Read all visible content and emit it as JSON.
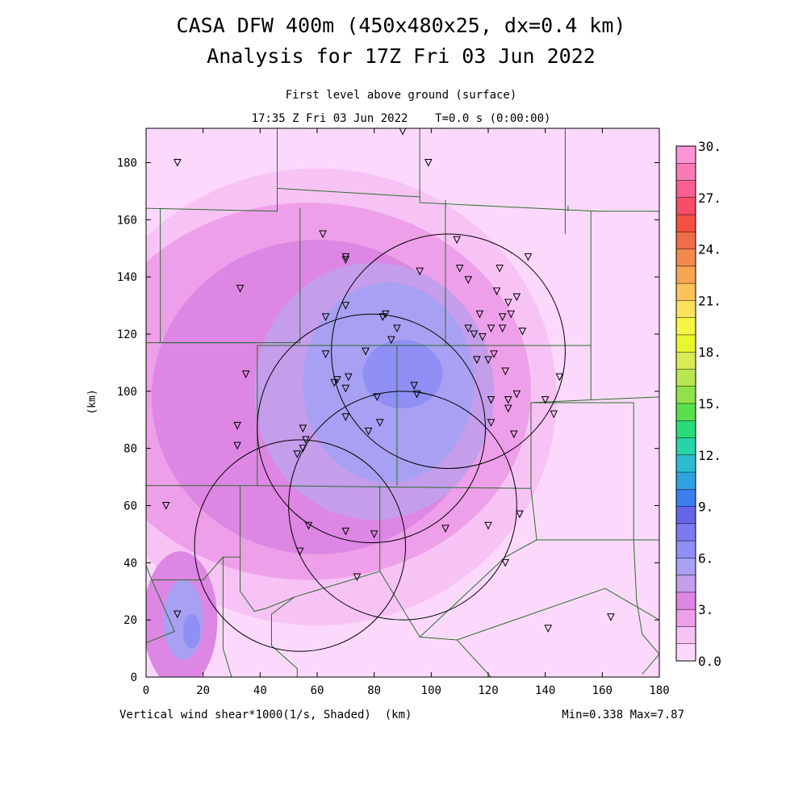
{
  "header": {
    "title_line1": "CASA DFW 400m (450x480x25, dx=0.4 km)",
    "title_line2": "Analysis for 17Z Fri 03 Jun 2022",
    "subtitle_level": "First level above ground (surface)",
    "subtitle_time": "17:35 Z Fri 03 Jun 2022    T=0.0 s (0:00:00)"
  },
  "footer": {
    "variable_label": "Vertical wind shear*1000(1/s, Shaded)  (km)",
    "min_max": "Min=0.338 Max=7.87"
  },
  "chart_data": {
    "type": "heatmap",
    "xlabel": "",
    "ylabel": "(km)",
    "xlim": [
      0,
      180
    ],
    "ylim": [
      0,
      192
    ],
    "x_ticks": [
      0,
      20,
      40,
      60,
      80,
      100,
      120,
      140,
      160,
      180
    ],
    "y_ticks": [
      0,
      20,
      40,
      60,
      80,
      100,
      120,
      140,
      160,
      180
    ],
    "colorbar": {
      "min": 0.0,
      "max": 30.0,
      "step": 1.5,
      "labels": [
        "0.0",
        "3.",
        "6.",
        "9.",
        "12.",
        "15.",
        "18.",
        "21.",
        "24.",
        "27.",
        "30."
      ],
      "colors": [
        "#fcd9fc",
        "#f7c3f5",
        "#ee9fe9",
        "#dd86e4",
        "#c49deb",
        "#a8a0f2",
        "#8f8ff5",
        "#7b7bee",
        "#6565e6",
        "#3c7ef0",
        "#2fa3e0",
        "#2bbcd0",
        "#26d4a8",
        "#2adc78",
        "#58e04c",
        "#8fe24a",
        "#b8e650",
        "#d9ec55",
        "#e8f62c",
        "#f6f544",
        "#fbe25e",
        "#fcc25a",
        "#f8a552",
        "#f28a4e",
        "#f06d4a",
        "#f44f40",
        "#f84c68",
        "#f85f90",
        "#f87cb4",
        "#fa95d6"
      ]
    },
    "field_regions": [
      {
        "level": 1,
        "cx": 60,
        "cy": 98,
        "rx": 84,
        "ry": 80
      },
      {
        "level": 2,
        "cx": 57,
        "cy": 100,
        "rx": 78,
        "ry": 66
      },
      {
        "level": 3,
        "cx": 60,
        "cy": 98,
        "rx": 58,
        "ry": 55
      },
      {
        "level": 4,
        "cx": 80,
        "cy": 100,
        "rx": 42,
        "ry": 45
      },
      {
        "level": 5,
        "cx": 85,
        "cy": 103,
        "rx": 30,
        "ry": 35
      },
      {
        "level": 6,
        "cx": 90,
        "cy": 106,
        "rx": 14,
        "ry": 12
      },
      {
        "level": 3,
        "cx": 12,
        "cy": 20,
        "rx": 13,
        "ry": 24
      },
      {
        "level": 5,
        "cx": 13,
        "cy": 20,
        "rx": 7,
        "ry": 14
      },
      {
        "level": 6,
        "cx": 16,
        "cy": 16,
        "rx": 3,
        "ry": 6
      },
      {
        "level": 2,
        "cx": 13,
        "cy": 143,
        "rx": 5,
        "ry": 4
      }
    ],
    "radar_circles": [
      {
        "cx": 106,
        "cy": 114,
        "r": 41
      },
      {
        "cx": 79,
        "cy": 87,
        "r": 40
      },
      {
        "cx": 90,
        "cy": 60,
        "r": 40
      },
      {
        "cx": 54,
        "cy": 46,
        "r": 37
      }
    ],
    "stations": [
      [
        90,
        191
      ],
      [
        11,
        180
      ],
      [
        99,
        180
      ],
      [
        62,
        155
      ],
      [
        70,
        147
      ],
      [
        70,
        146
      ],
      [
        134,
        147
      ],
      [
        109,
        153
      ],
      [
        110,
        143
      ],
      [
        96,
        142
      ],
      [
        113,
        139
      ],
      [
        124,
        143
      ],
      [
        123,
        135
      ],
      [
        130,
        133
      ],
      [
        127,
        131
      ],
      [
        33,
        136
      ],
      [
        63,
        126
      ],
      [
        70,
        130
      ],
      [
        84,
        127
      ],
      [
        83,
        126
      ],
      [
        117,
        127
      ],
      [
        128,
        127
      ],
      [
        125,
        126
      ],
      [
        125,
        122
      ],
      [
        113,
        122
      ],
      [
        118,
        119
      ],
      [
        115,
        120
      ],
      [
        121,
        122
      ],
      [
        132,
        121
      ],
      [
        88,
        122
      ],
      [
        86,
        118
      ],
      [
        77,
        114
      ],
      [
        63,
        113
      ],
      [
        122,
        113
      ],
      [
        120,
        111
      ],
      [
        116,
        111
      ],
      [
        126,
        107
      ],
      [
        35,
        106
      ],
      [
        71,
        105
      ],
      [
        67,
        104
      ],
      [
        66,
        103
      ],
      [
        70,
        101
      ],
      [
        94,
        102
      ],
      [
        95,
        99
      ],
      [
        81,
        98
      ],
      [
        121,
        97
      ],
      [
        127,
        97
      ],
      [
        130,
        99
      ],
      [
        140,
        97
      ],
      [
        145,
        105
      ],
      [
        143,
        92
      ],
      [
        127,
        94
      ],
      [
        70,
        91
      ],
      [
        32,
        88
      ],
      [
        82,
        89
      ],
      [
        55,
        87
      ],
      [
        121,
        89
      ],
      [
        129,
        85
      ],
      [
        78,
        86
      ],
      [
        56,
        83
      ],
      [
        32,
        81
      ],
      [
        55,
        80
      ],
      [
        53,
        78
      ],
      [
        7,
        60
      ],
      [
        131,
        57
      ],
      [
        57,
        53
      ],
      [
        70,
        51
      ],
      [
        80,
        50
      ],
      [
        105,
        52
      ],
      [
        120,
        53
      ],
      [
        54,
        44
      ],
      [
        126,
        40
      ],
      [
        74,
        35
      ],
      [
        11,
        22
      ],
      [
        141,
        17
      ],
      [
        163,
        21
      ]
    ],
    "county_lines": [
      [
        [
          0,
          164
        ],
        [
          46,
          163
        ],
        [
          46,
          171
        ],
        [
          96,
          168
        ],
        [
          96,
          166
        ],
        [
          158,
          163
        ],
        [
          180,
          163
        ]
      ],
      [
        [
          46,
          192
        ],
        [
          46,
          171
        ]
      ],
      [
        [
          96,
          192
        ],
        [
          96,
          168
        ]
      ],
      [
        [
          147,
          192
        ],
        [
          147,
          163
        ]
      ],
      [
        [
          5,
          164
        ],
        [
          5,
          117
        ],
        [
          39,
          117
        ]
      ],
      [
        [
          54,
          164
        ],
        [
          54,
          117
        ]
      ],
      [
        [
          105,
          167
        ],
        [
          105,
          116
        ]
      ],
      [
        [
          54,
          117
        ],
        [
          0,
          117
        ]
      ],
      [
        [
          105,
          116
        ],
        [
          39,
          116
        ],
        [
          39,
          67
        ],
        [
          0,
          67
        ]
      ],
      [
        [
          105,
          116
        ],
        [
          156,
          116
        ]
      ],
      [
        [
          148,
          165
        ],
        [
          148,
          163
        ]
      ],
      [
        [
          156,
          163
        ],
        [
          156,
          97
        ],
        [
          180,
          98
        ]
      ],
      [
        [
          147,
          155
        ],
        [
          147,
          163
        ]
      ],
      [
        [
          156,
          97
        ],
        [
          135,
          96
        ],
        [
          135,
          66
        ],
        [
          39,
          67
        ]
      ],
      [
        [
          88,
          116
        ],
        [
          88,
          67
        ]
      ],
      [
        [
          135,
          96
        ],
        [
          171,
          96
        ],
        [
          171,
          48
        ],
        [
          180,
          48
        ]
      ],
      [
        [
          135,
          66
        ],
        [
          137,
          48
        ],
        [
          171,
          48
        ]
      ],
      [
        [
          33,
          67
        ],
        [
          33,
          42
        ],
        [
          27,
          42
        ],
        [
          20,
          34
        ],
        [
          2,
          34
        ],
        [
          0,
          39
        ]
      ],
      [
        [
          33,
          42
        ],
        [
          33,
          30
        ],
        [
          38,
          23
        ],
        [
          42,
          24
        ],
        [
          52,
          28
        ],
        [
          82,
          37
        ]
      ],
      [
        [
          82,
          67
        ],
        [
          82,
          37
        ],
        [
          96,
          14
        ],
        [
          109,
          13
        ],
        [
          161,
          31
        ]
      ],
      [
        [
          137,
          48
        ],
        [
          126,
          42
        ],
        [
          96,
          14
        ]
      ],
      [
        [
          161,
          31
        ],
        [
          180,
          20
        ]
      ],
      [
        [
          52,
          28
        ],
        [
          44,
          22
        ],
        [
          44,
          11
        ],
        [
          53,
          3
        ],
        [
          53,
          0
        ]
      ],
      [
        [
          27,
          42
        ],
        [
          27,
          10
        ],
        [
          30,
          0
        ]
      ],
      [
        [
          2,
          34
        ],
        [
          10,
          16
        ],
        [
          0,
          12
        ]
      ],
      [
        [
          109,
          13
        ],
        [
          121,
          0
        ]
      ],
      [
        [
          171,
          48
        ],
        [
          172,
          27
        ],
        [
          174,
          15
        ],
        [
          180,
          8
        ]
      ],
      [
        [
          180,
          163
        ],
        [
          180,
          98
        ]
      ],
      [
        [
          174,
          1
        ],
        [
          180,
          8
        ]
      ]
    ]
  }
}
